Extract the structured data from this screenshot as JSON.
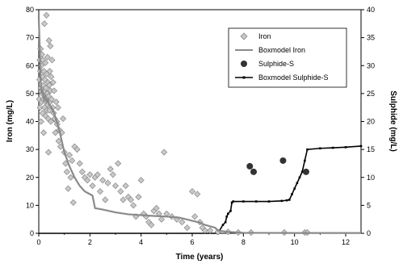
{
  "chart_data": {
    "type": "scatter",
    "xlabel": "Time (years)",
    "ylabel_left": "Iron (mg/L)",
    "ylabel_right": "Sulphide (mg/L)",
    "xlim": [
      0,
      12.6
    ],
    "xticks": [
      "0",
      "2",
      "4",
      "6",
      "8",
      "10",
      "12"
    ],
    "ylim_left": [
      0,
      80
    ],
    "yticks_left": [
      "0",
      "10",
      "20",
      "30",
      "40",
      "50",
      "60",
      "70",
      "80"
    ],
    "ylim_right": [
      0,
      40
    ],
    "yticks_right": [
      "0",
      "5",
      "10",
      "15",
      "20",
      "25",
      "30",
      "35",
      "40"
    ],
    "legend_position": "top-right",
    "legend": [
      "Iron",
      "Boxmodel Iron",
      "Sulphide-S",
      "Boxmodel Sulphide-S"
    ],
    "colors": {
      "iron_marker": "#c8c8c8",
      "boxmodel_iron": "#8a8a8a",
      "sulphide_marker": "#333333",
      "boxmodel_sulphide": "#000000"
    },
    "series": [
      {
        "name": "Iron",
        "axis": "left",
        "marker": "diamond",
        "points": [
          [
            0.02,
            48
          ],
          [
            0.03,
            55
          ],
          [
            0.04,
            62
          ],
          [
            0.05,
            45
          ],
          [
            0.06,
            58
          ],
          [
            0.07,
            66
          ],
          [
            0.08,
            52
          ],
          [
            0.09,
            40
          ],
          [
            0.1,
            60
          ],
          [
            0.11,
            47
          ],
          [
            0.12,
            64
          ],
          [
            0.13,
            50
          ],
          [
            0.14,
            56
          ],
          [
            0.15,
            43
          ],
          [
            0.16,
            62
          ],
          [
            0.17,
            53
          ],
          [
            0.18,
            48
          ],
          [
            0.19,
            36
          ],
          [
            0.2,
            58
          ],
          [
            0.21,
            51
          ],
          [
            0.22,
            75
          ],
          [
            0.23,
            45
          ],
          [
            0.24,
            55
          ],
          [
            0.25,
            49
          ],
          [
            0.26,
            61
          ],
          [
            0.27,
            42
          ],
          [
            0.28,
            52
          ],
          [
            0.29,
            47
          ],
          [
            0.3,
            78
          ],
          [
            0.31,
            57
          ],
          [
            0.32,
            44
          ],
          [
            0.33,
            50
          ],
          [
            0.34,
            63
          ],
          [
            0.35,
            46
          ],
          [
            0.36,
            54
          ],
          [
            0.37,
            41
          ],
          [
            0.38,
            29
          ],
          [
            0.39,
            49
          ],
          [
            0.4,
            69
          ],
          [
            0.41,
            53
          ],
          [
            0.42,
            44
          ],
          [
            0.43,
            58
          ],
          [
            0.44,
            47
          ],
          [
            0.45,
            67
          ],
          [
            0.46,
            51
          ],
          [
            0.47,
            40
          ],
          [
            0.48,
            56
          ],
          [
            0.5,
            48
          ],
          [
            0.52,
            62
          ],
          [
            0.54,
            45
          ],
          [
            0.56,
            54
          ],
          [
            0.58,
            43
          ],
          [
            0.6,
            51
          ],
          [
            0.62,
            41
          ],
          [
            0.65,
            36
          ],
          [
            0.68,
            47
          ],
          [
            0.7,
            40
          ],
          [
            0.72,
            39
          ],
          [
            0.75,
            45
          ],
          [
            0.78,
            33
          ],
          [
            0.8,
            37
          ],
          [
            0.85,
            31
          ],
          [
            0.9,
            36
          ],
          [
            0.95,
            41
          ],
          [
            1.0,
            29
          ],
          [
            1.05,
            25
          ],
          [
            1.1,
            22
          ],
          [
            1.15,
            16
          ],
          [
            1.2,
            28
          ],
          [
            1.25,
            20
          ],
          [
            1.3,
            26
          ],
          [
            1.35,
            11
          ],
          [
            1.4,
            31
          ],
          [
            1.5,
            30
          ],
          [
            1.6,
            25
          ],
          [
            1.7,
            22
          ],
          [
            1.8,
            20
          ],
          [
            1.9,
            19
          ],
          [
            2.0,
            21
          ],
          [
            2.1,
            17
          ],
          [
            2.2,
            20
          ],
          [
            2.3,
            21
          ],
          [
            2.4,
            15
          ],
          [
            2.5,
            19
          ],
          [
            2.6,
            12
          ],
          [
            2.7,
            18
          ],
          [
            2.8,
            23
          ],
          [
            2.9,
            21
          ],
          [
            3.0,
            17
          ],
          [
            3.1,
            25
          ],
          [
            3.2,
            15
          ],
          [
            3.3,
            12
          ],
          [
            3.4,
            17
          ],
          [
            3.5,
            13
          ],
          [
            3.6,
            12
          ],
          [
            3.7,
            10
          ],
          [
            3.8,
            6
          ],
          [
            3.9,
            13
          ],
          [
            4.0,
            19
          ],
          [
            4.1,
            7
          ],
          [
            4.2,
            6
          ],
          [
            4.3,
            4
          ],
          [
            4.4,
            3
          ],
          [
            4.5,
            8
          ],
          [
            4.6,
            9
          ],
          [
            4.7,
            7
          ],
          [
            4.8,
            5
          ],
          [
            4.9,
            29
          ],
          [
            5.0,
            7
          ],
          [
            5.2,
            6
          ],
          [
            5.4,
            5
          ],
          [
            5.6,
            4
          ],
          [
            5.8,
            2
          ],
          [
            6.0,
            15
          ],
          [
            6.1,
            6
          ],
          [
            6.2,
            14
          ],
          [
            6.3,
            4
          ],
          [
            6.4,
            2
          ],
          [
            6.5,
            1
          ],
          [
            6.7,
            1
          ],
          [
            7.0,
            0.5
          ],
          [
            7.4,
            0.5
          ],
          [
            7.8,
            0.3
          ],
          [
            8.3,
            0.3
          ],
          [
            9.6,
            0.3
          ],
          [
            10.4,
            0.3
          ],
          [
            10.5,
            0.3
          ]
        ]
      },
      {
        "name": "Boxmodel Iron",
        "axis": "left",
        "marker": "line",
        "points": [
          [
            0,
            77
          ],
          [
            0.03,
            69
          ],
          [
            0.06,
            57
          ],
          [
            0.1,
            50
          ],
          [
            0.15,
            51
          ],
          [
            0.2,
            48
          ],
          [
            0.25,
            49
          ],
          [
            0.3,
            47
          ],
          [
            0.35,
            48
          ],
          [
            0.4,
            46
          ],
          [
            0.5,
            45
          ],
          [
            0.6,
            43
          ],
          [
            0.7,
            40
          ],
          [
            0.8,
            37
          ],
          [
            0.9,
            33
          ],
          [
            1.0,
            29
          ],
          [
            1.2,
            24
          ],
          [
            1.4,
            20
          ],
          [
            1.6,
            17
          ],
          [
            1.8,
            15
          ],
          [
            2.0,
            14
          ],
          [
            2.1,
            13.5
          ],
          [
            2.2,
            9
          ],
          [
            2.5,
            8.5
          ],
          [
            3.0,
            7.5
          ],
          [
            3.5,
            6.8
          ],
          [
            4.0,
            6.5
          ],
          [
            4.5,
            6.2
          ],
          [
            5.0,
            6.0
          ],
          [
            5.5,
            5.6
          ],
          [
            6.0,
            4.5
          ],
          [
            6.3,
            3.8
          ],
          [
            6.5,
            3
          ],
          [
            6.9,
            2
          ],
          [
            7.0,
            1
          ],
          [
            7.4,
            0.5
          ],
          [
            8.0,
            0.2
          ],
          [
            10.0,
            0.1
          ],
          [
            12.6,
            0.1
          ]
        ]
      },
      {
        "name": "Sulphide-S",
        "axis": "right",
        "marker": "circle",
        "points": [
          [
            8.25,
            12
          ],
          [
            8.4,
            11
          ],
          [
            9.55,
            13
          ],
          [
            10.45,
            11
          ]
        ]
      },
      {
        "name": "Boxmodel Sulphide-S",
        "axis": "right",
        "marker": "line-small-marker",
        "points": [
          [
            0,
            0
          ],
          [
            7.0,
            0
          ],
          [
            7.2,
            1.5
          ],
          [
            7.3,
            2
          ],
          [
            7.35,
            3
          ],
          [
            7.4,
            3.5
          ],
          [
            7.5,
            4
          ],
          [
            7.55,
            5.5
          ],
          [
            7.6,
            5.7
          ],
          [
            8.0,
            5.7
          ],
          [
            8.5,
            5.7
          ],
          [
            9.0,
            5.7
          ],
          [
            9.5,
            5.8
          ],
          [
            9.7,
            5.9
          ],
          [
            9.8,
            6
          ],
          [
            9.9,
            7
          ],
          [
            10.0,
            8
          ],
          [
            10.1,
            9
          ],
          [
            10.2,
            10
          ],
          [
            10.3,
            11
          ],
          [
            10.4,
            13
          ],
          [
            10.5,
            15
          ],
          [
            11.0,
            15.2
          ],
          [
            11.5,
            15.3
          ],
          [
            12.0,
            15.4
          ],
          [
            12.6,
            15.6
          ]
        ]
      }
    ]
  }
}
